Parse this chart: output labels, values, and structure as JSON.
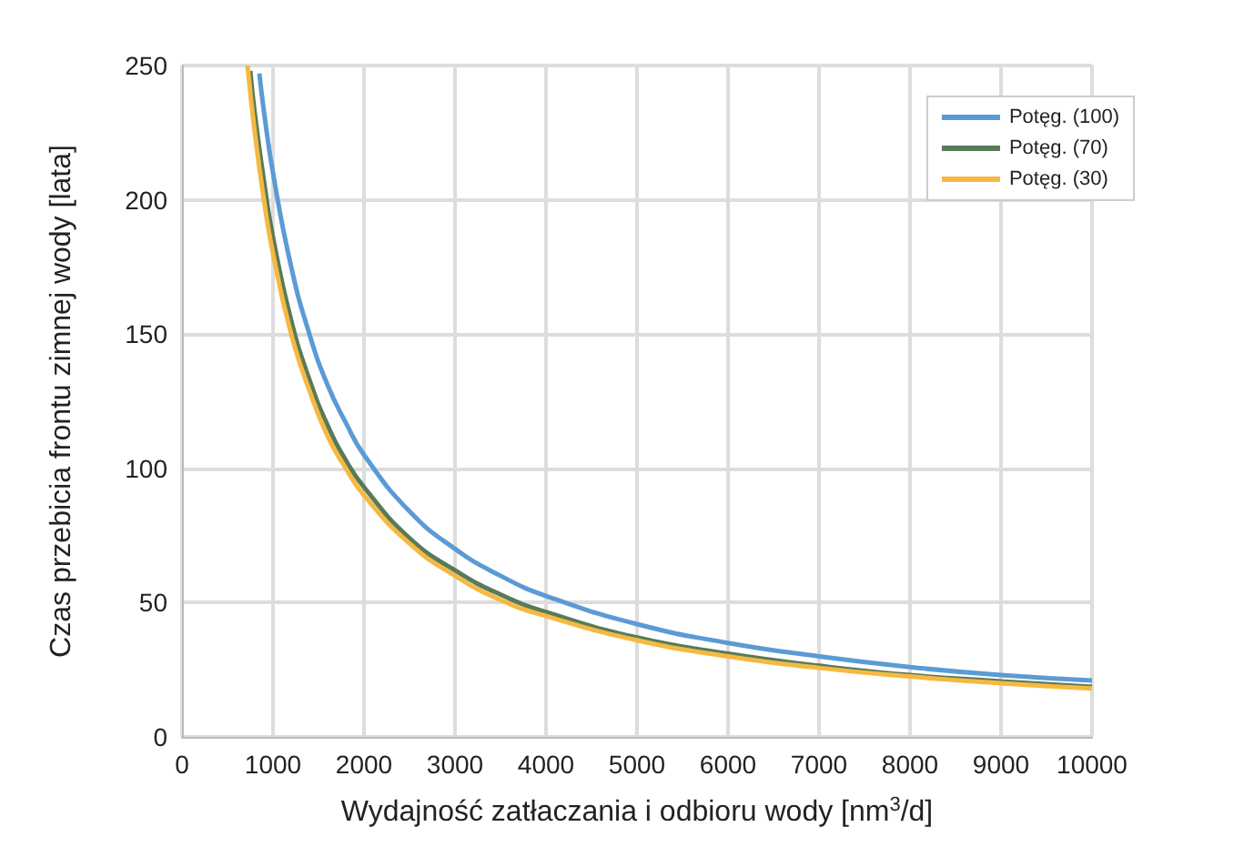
{
  "chart_data": {
    "type": "line",
    "xlabel": "Wydajność zatłaczania i odbioru wody [nm$^{3}$/d]",
    "ylabel": "Czas przebicia frontu zimnej wody [lata]",
    "xlim": [
      0,
      10000
    ],
    "xticks": [
      0,
      1000,
      2000,
      3000,
      4000,
      5000,
      6000,
      7000,
      8000,
      9000,
      10000
    ],
    "ylim": [
      0,
      250
    ],
    "yticks": [
      0,
      50,
      100,
      150,
      200,
      250
    ],
    "grid": true,
    "legend": "top right",
    "marker": "none",
    "line_style": "solid",
    "series": [
      {
        "name": "Potęg. (100)",
        "color": "#5b9bd5",
        "x": [
          850,
          900,
          1000,
          1200,
          1400,
          1600,
          1800,
          2000,
          2500,
          3000,
          3500,
          4000,
          5000,
          6000,
          7000,
          8000,
          9000,
          10000
        ],
        "values": [
          247,
          233,
          210,
          175,
          150,
          131,
          117,
          105,
          84,
          70,
          60,
          52.5,
          42,
          35,
          30,
          26,
          23,
          21
        ]
      },
      {
        "name": "Potęg. (70)",
        "color": "#587a58",
        "x": [
          750,
          800,
          900,
          1000,
          1200,
          1400,
          1600,
          1800,
          2000,
          2500,
          3000,
          3500,
          4000,
          5000,
          6000,
          7000,
          8000,
          9000,
          10000
        ],
        "values": [
          248,
          232,
          207,
          186,
          155,
          133,
          116,
          103,
          93,
          74,
          62,
          53,
          46.5,
          37,
          31,
          26.5,
          23,
          20.7,
          18.6
        ]
      },
      {
        "name": "Potęg. (30)",
        "color": "#f5b942",
        "x": [
          720,
          800,
          900,
          1000,
          1200,
          1400,
          1600,
          1800,
          2000,
          2500,
          3000,
          3500,
          4000,
          5000,
          6000,
          7000,
          8000,
          9000,
          10000
        ],
        "values": [
          250,
          225,
          200,
          180,
          150,
          129,
          112,
          100,
          90,
          72,
          60,
          51,
          45,
          36,
          30,
          25.7,
          22.5,
          20,
          18
        ]
      }
    ]
  }
}
